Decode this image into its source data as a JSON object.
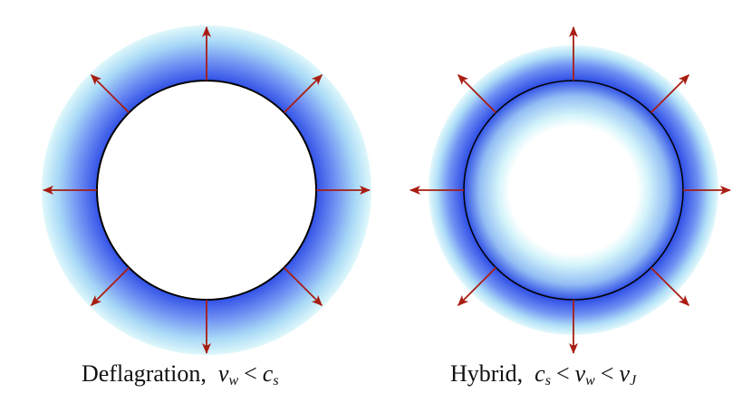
{
  "colors": {
    "arrow": "#a81d12",
    "outline": "#000000",
    "shell_dark": "#2f4fe6",
    "shell_mid": "#7fa0f5",
    "shell_light": "#d6f6fb",
    "background": "#ffffff"
  },
  "panels": [
    {
      "id": "deflagration",
      "caption": {
        "name": "Deflagration,",
        "v": "v",
        "v_sub": "w",
        "op": "<",
        "c": "c",
        "c_sub": "s"
      }
    },
    {
      "id": "hybrid",
      "caption": {
        "name": "Hybrid,",
        "c": "c",
        "c_sub": "s",
        "op1": "<",
        "v": "v",
        "v_sub": "w",
        "op2": "<",
        "vj": "v",
        "vj_sub": "J"
      }
    }
  ],
  "arrow_directions": [
    "N",
    "NE",
    "E",
    "SE",
    "S",
    "SW",
    "W",
    "NW"
  ]
}
